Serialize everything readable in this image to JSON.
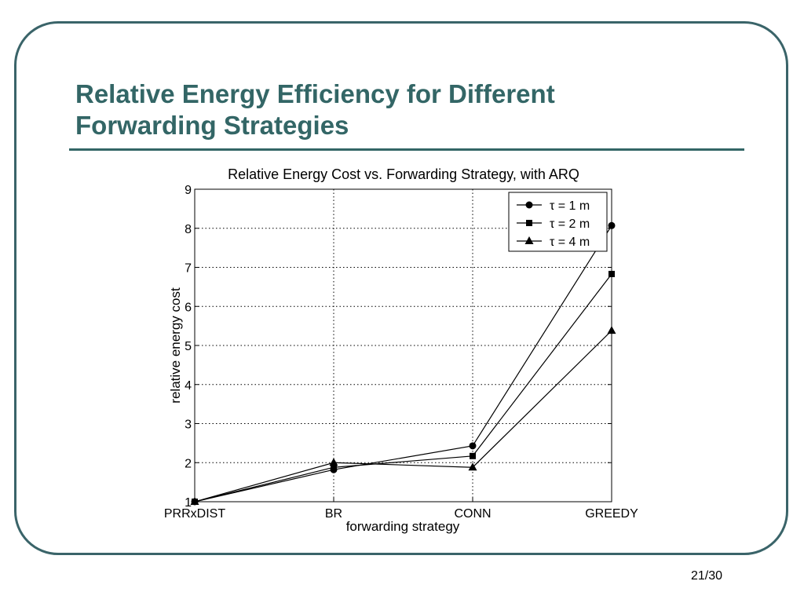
{
  "slide": {
    "title_line1": "Relative Energy Efficiency for Different",
    "title_line2": "Forwarding Strategies",
    "page_number": "21/30"
  },
  "chart_data": {
    "type": "line",
    "title": "Relative Energy Cost vs. Forwarding Strategy, with ARQ",
    "xlabel": "forwarding strategy",
    "ylabel": "relative energy cost",
    "categories": [
      "PRRxDIST",
      "BR",
      "CONN",
      "GREEDY"
    ],
    "ylim": [
      1,
      9
    ],
    "yticks": [
      1,
      2,
      3,
      4,
      5,
      6,
      7,
      8,
      9
    ],
    "grid": true,
    "legend_position": "top-right",
    "series": [
      {
        "name": "τ = 1 m",
        "marker": "circle",
        "values": [
          1.0,
          1.82,
          2.43,
          8.07
        ]
      },
      {
        "name": "τ = 2 m",
        "marker": "square",
        "values": [
          1.0,
          1.88,
          2.17,
          6.83
        ]
      },
      {
        "name": "τ = 4 m",
        "marker": "triangle",
        "values": [
          1.0,
          2.0,
          1.88,
          5.38
        ]
      }
    ]
  }
}
